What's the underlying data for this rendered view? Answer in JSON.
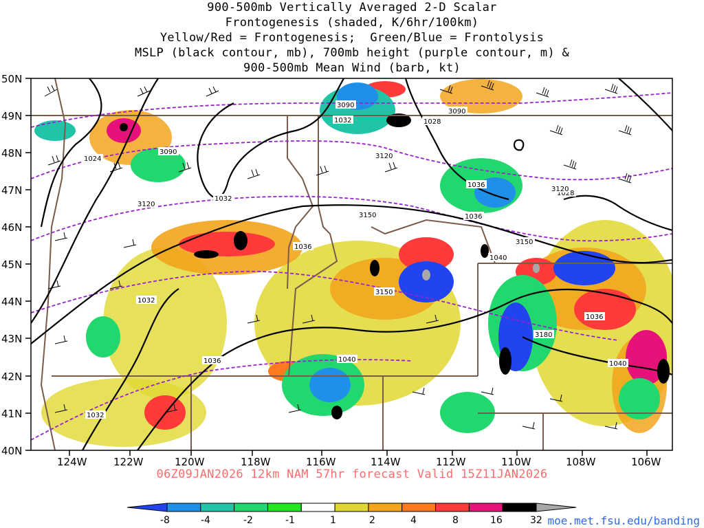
{
  "title_lines": [
    "900-500mb Vertically Averaged 2-D Scalar",
    "Frontogenesis (shaded, K/6hr/100km)",
    "Yellow/Red = Frontogenesis;  Green/Blue = Frontolysis",
    "MSLP (black contour, mb), 700mb height (purple contour, m) &",
    "900-500mb Mean Wind (barb, kt)"
  ],
  "valid_line": "06Z09JAN2026 12km NAM 57hr forecast Valid 15Z11JAN2026",
  "credit": "moe.met.fsu.edu/banding",
  "map": {
    "lat_labels": [
      "50N",
      "49N",
      "48N",
      "47N",
      "46N",
      "45N",
      "44N",
      "43N",
      "42N",
      "41N",
      "40N"
    ],
    "lon_labels": [
      "124W",
      "122W",
      "120W",
      "118W",
      "116W",
      "114W",
      "112W",
      "110W",
      "108W",
      "106W"
    ],
    "mslp_labels": [
      "1024",
      "1032",
      "1028",
      "1032",
      "1036",
      "1036",
      "1040",
      "1032",
      "1036",
      "1040",
      "1032",
      "1040",
      "1036",
      "1028",
      "1036"
    ],
    "height_labels": [
      "3090",
      "3090",
      "3090",
      "3120",
      "3120",
      "3150",
      "3150",
      "3150",
      "3180",
      "3120"
    ]
  },
  "colorbar": {
    "labels": [
      "-8",
      "-4",
      "-2",
      "-1",
      "1",
      "2",
      "4",
      "8",
      "16",
      "32"
    ],
    "colors": [
      "#2244ee",
      "#1f8fe8",
      "#22c4a8",
      "#22d86e",
      "#22e622",
      "#ffffff",
      "#e0d832",
      "#f2a51c",
      "#ff7a1e",
      "#ff3a3a",
      "#e6127a",
      "#000000",
      "#a8a8a8"
    ]
  }
}
